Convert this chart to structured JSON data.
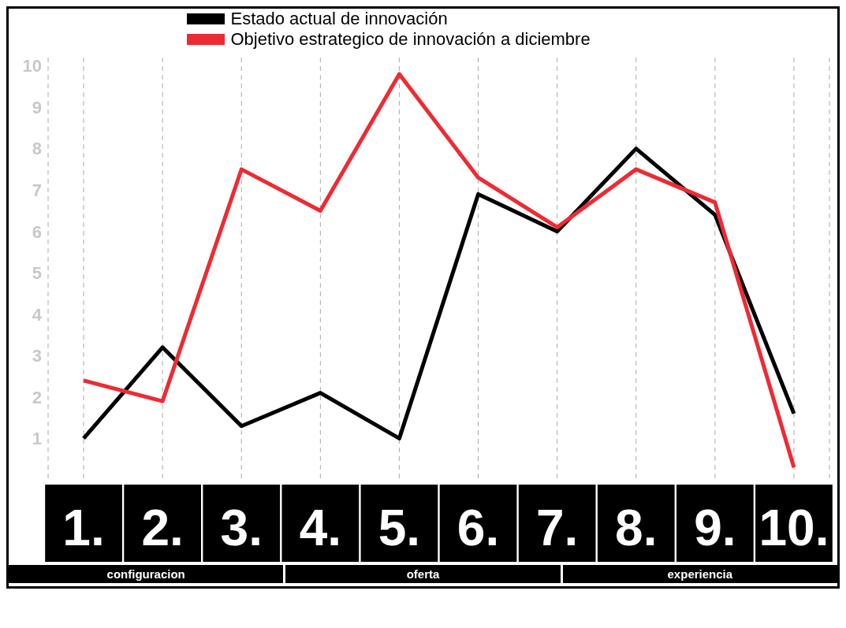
{
  "chart_data": {
    "type": "line",
    "categories": [
      "1.",
      "2.",
      "3.",
      "4.",
      "5.",
      "6.",
      "7.",
      "8.",
      "9.",
      "10."
    ],
    "series": [
      {
        "name": "Estado actual de innovación",
        "color": "#000000",
        "values": [
          1.0,
          3.2,
          1.3,
          2.1,
          1.0,
          6.9,
          6.0,
          8.0,
          6.4,
          1.6
        ]
      },
      {
        "name": "Objetivo estrategico de innovación a diciembre",
        "color": "#ee2a33",
        "values": [
          2.4,
          1.9,
          7.5,
          6.5,
          9.8,
          7.3,
          6.1,
          7.5,
          6.7,
          0.3
        ]
      }
    ],
    "ylim": [
      0,
      10.2
    ],
    "yticks": [
      1,
      2,
      3,
      4,
      5,
      6,
      7,
      8,
      9,
      10
    ],
    "grid": "x",
    "legend": "top",
    "marker": "none",
    "line_style": "solid",
    "annotations": [
      "configuracion",
      "oferta",
      "experiencia"
    ]
  }
}
